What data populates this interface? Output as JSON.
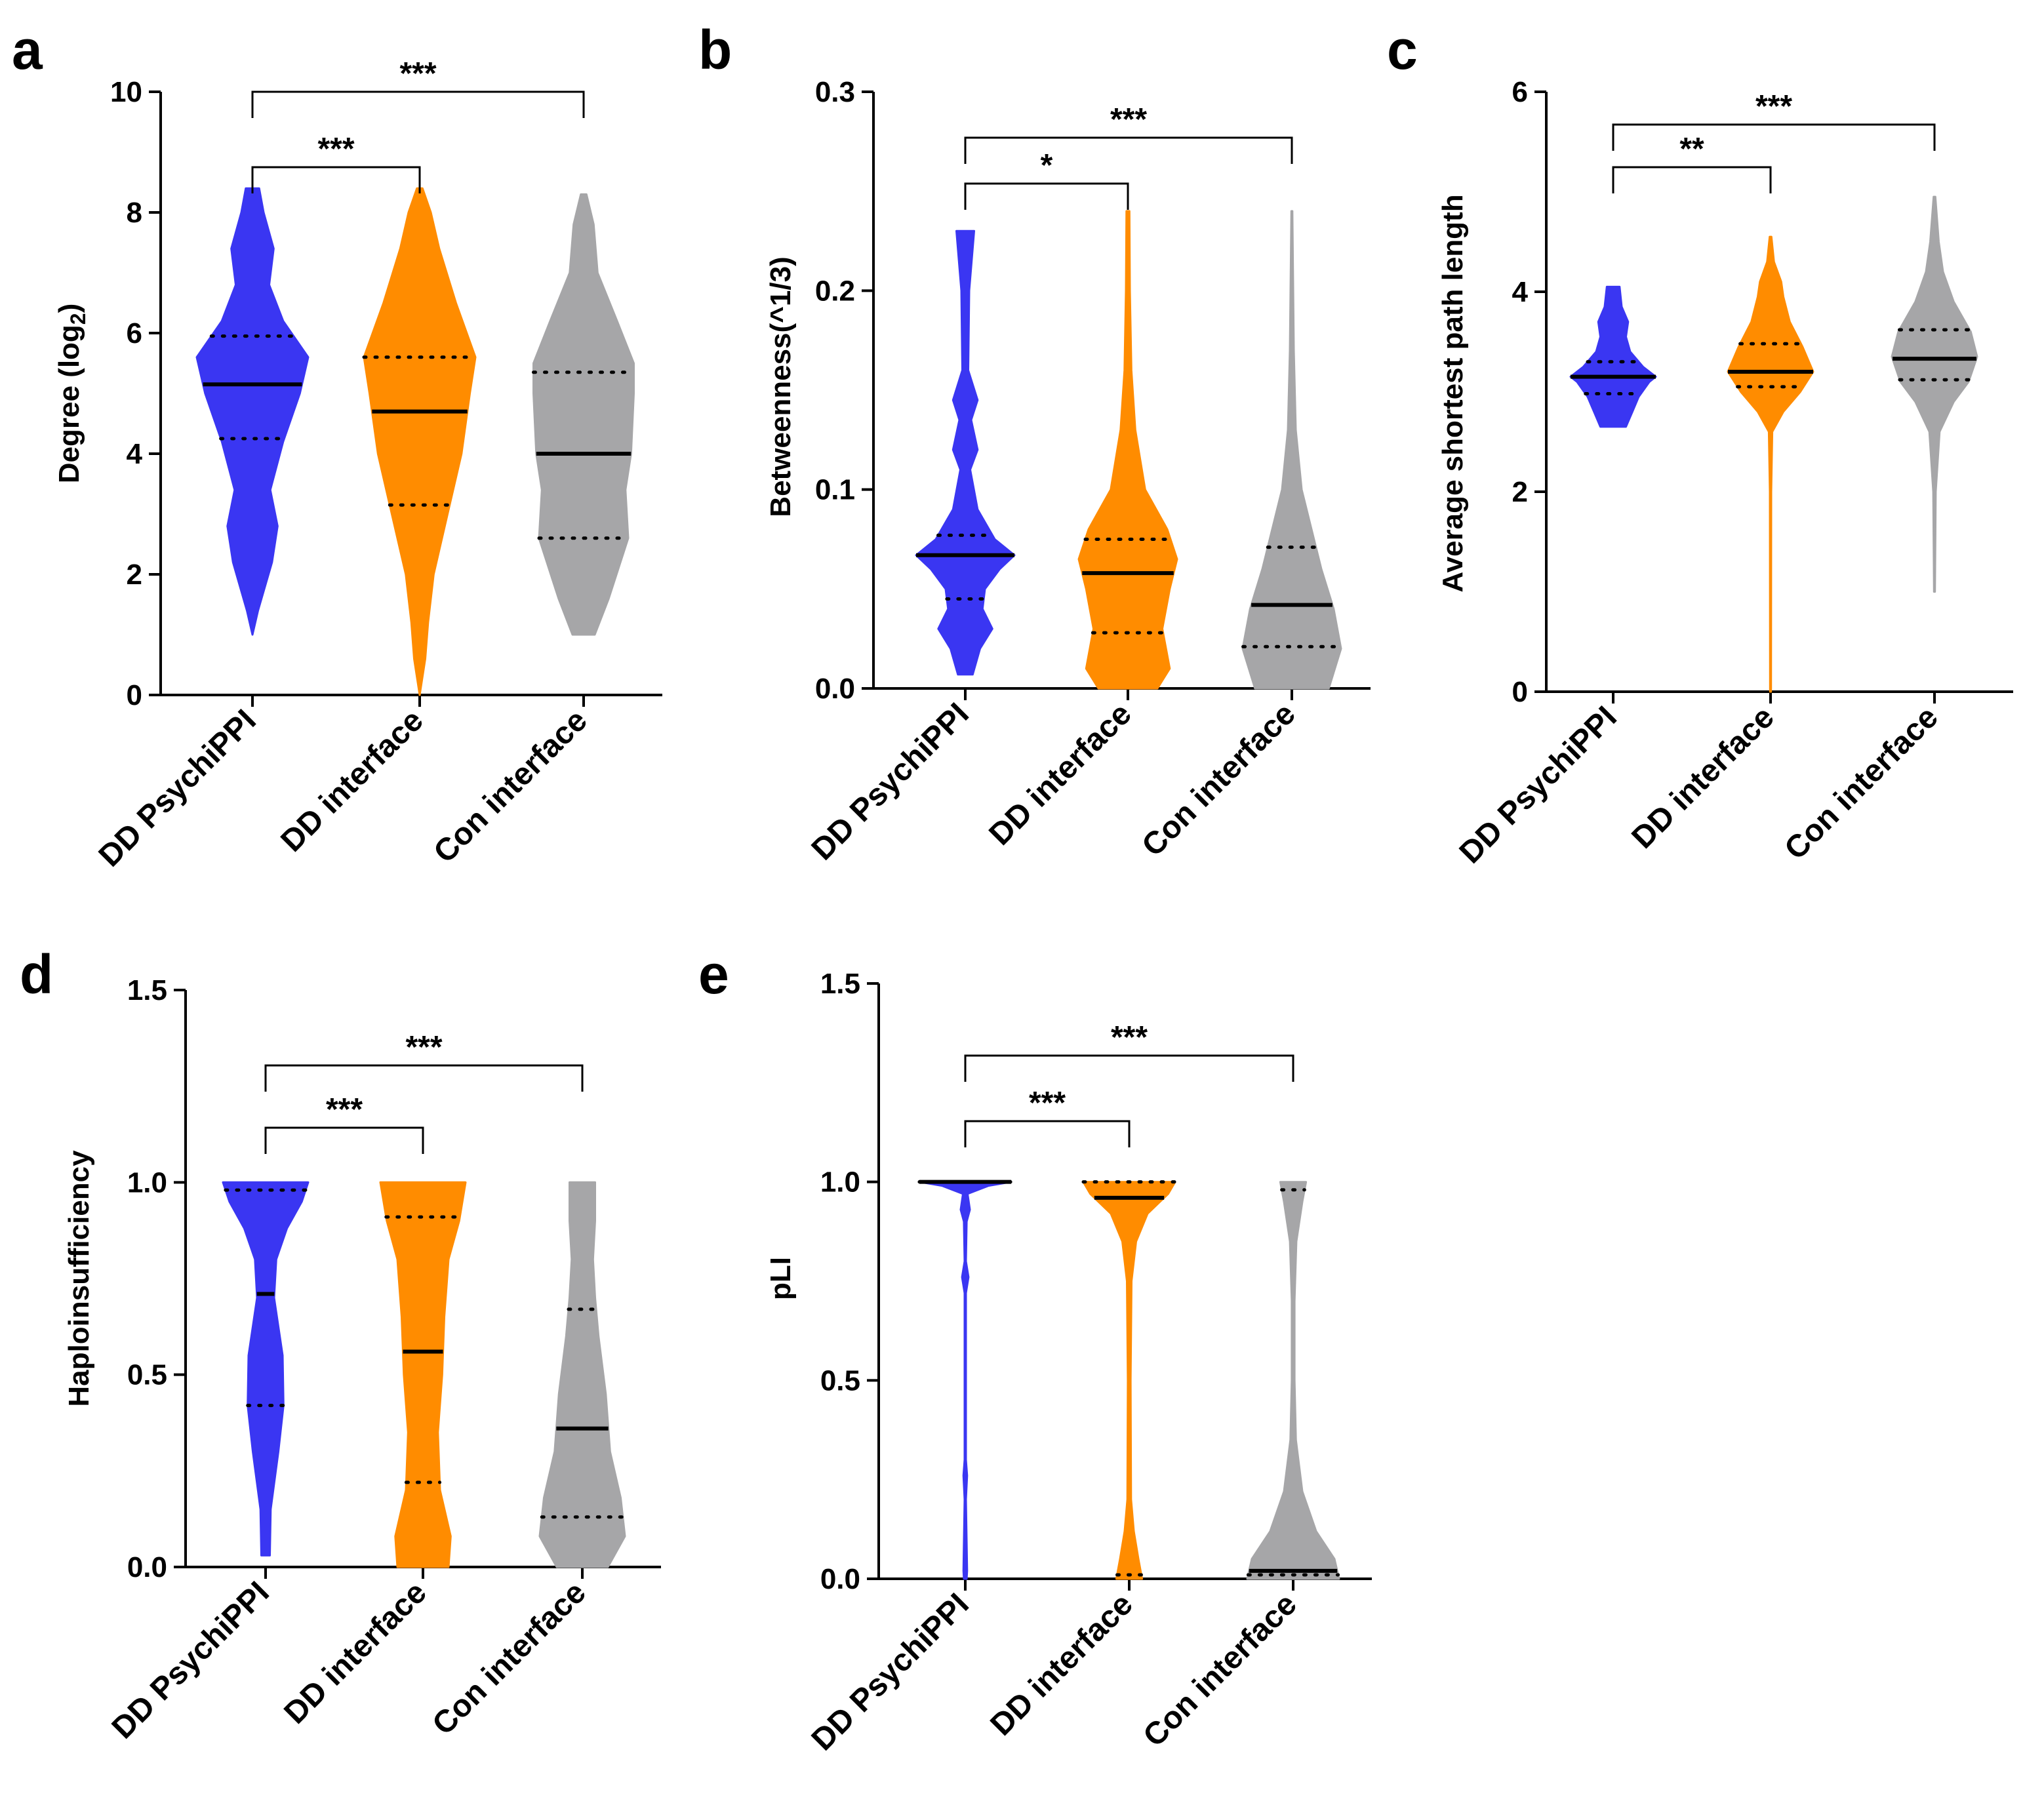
{
  "figure": {
    "colors": {
      "DD PsychiPPI": "#3a36f2",
      "DD interface": "#ff8c00",
      "Con interface": "#a6a6a8",
      "axis": "#000000"
    }
  },
  "chart_data": [
    {
      "panel": "a",
      "type": "violin",
      "ylabel": "Degree (log",
      "ylabel_sub": "2",
      "ylabel_suffix": ")",
      "ylim": [
        0,
        10
      ],
      "yticks": [
        0,
        2,
        4,
        6,
        8,
        10
      ],
      "categories": [
        "DD PsychiPPI",
        "DD interface",
        "Con interface"
      ],
      "series": [
        {
          "name": "DD PsychiPPI",
          "min": 1.0,
          "max": 8.4,
          "median": 5.15,
          "q1": 4.25,
          "q3": 5.95,
          "profile": [
            [
              1.0,
              0.0
            ],
            [
              1.4,
              0.1
            ],
            [
              2.2,
              0.35
            ],
            [
              2.8,
              0.45
            ],
            [
              3.4,
              0.32
            ],
            [
              4.2,
              0.55
            ],
            [
              5.0,
              0.85
            ],
            [
              5.6,
              1.0
            ],
            [
              6.2,
              0.55
            ],
            [
              6.8,
              0.3
            ],
            [
              7.4,
              0.38
            ],
            [
              8.0,
              0.2
            ],
            [
              8.4,
              0.12
            ]
          ]
        },
        {
          "name": "DD interface",
          "min": 0.0,
          "max": 8.4,
          "median": 4.7,
          "q1": 3.15,
          "q3": 5.6,
          "profile": [
            [
              0.0,
              0.0
            ],
            [
              0.6,
              0.1
            ],
            [
              1.2,
              0.15
            ],
            [
              2.0,
              0.25
            ],
            [
              3.0,
              0.5
            ],
            [
              4.0,
              0.75
            ],
            [
              5.0,
              0.9
            ],
            [
              5.6,
              1.0
            ],
            [
              6.5,
              0.65
            ],
            [
              7.4,
              0.35
            ],
            [
              8.0,
              0.2
            ],
            [
              8.4,
              0.05
            ]
          ]
        },
        {
          "name": "Con interface",
          "min": 1.0,
          "max": 8.3,
          "median": 4.0,
          "q1": 2.6,
          "q3": 5.35,
          "profile": [
            [
              1.0,
              0.2
            ],
            [
              1.6,
              0.45
            ],
            [
              2.6,
              0.8
            ],
            [
              3.4,
              0.75
            ],
            [
              4.0,
              0.85
            ],
            [
              5.0,
              0.9
            ],
            [
              5.5,
              0.9
            ],
            [
              6.2,
              0.6
            ],
            [
              7.0,
              0.25
            ],
            [
              7.8,
              0.18
            ],
            [
              8.3,
              0.05
            ]
          ]
        }
      ],
      "comparisons": [
        {
          "from": "DD PsychiPPI",
          "to": "DD interface",
          "label": "***"
        },
        {
          "from": "DD PsychiPPI",
          "to": "Con interface",
          "label": "***"
        }
      ]
    },
    {
      "panel": "b",
      "type": "violin",
      "ylabel": "Betweenness(^1/3)",
      "ylabel_sub": "",
      "ylabel_suffix": "",
      "ylim": [
        0,
        0.3
      ],
      "yticks": [
        0.0,
        0.1,
        0.2,
        0.3
      ],
      "yticklabels": [
        "0.0",
        "0.1",
        "0.2",
        "0.3"
      ],
      "categories": [
        "DD PsychiPPI",
        "DD interface",
        "Con interface"
      ],
      "series": [
        {
          "name": "DD PsychiPPI",
          "min": 0.007,
          "max": 0.23,
          "median": 0.067,
          "q1": 0.045,
          "q3": 0.077,
          "profile": [
            [
              0.007,
              0.15
            ],
            [
              0.02,
              0.3
            ],
            [
              0.03,
              0.55
            ],
            [
              0.04,
              0.35
            ],
            [
              0.05,
              0.4
            ],
            [
              0.06,
              0.7
            ],
            [
              0.067,
              1.0
            ],
            [
              0.075,
              0.6
            ],
            [
              0.09,
              0.25
            ],
            [
              0.11,
              0.1
            ],
            [
              0.12,
              0.25
            ],
            [
              0.135,
              0.12
            ],
            [
              0.145,
              0.25
            ],
            [
              0.16,
              0.06
            ],
            [
              0.2,
              0.08
            ],
            [
              0.23,
              0.18
            ]
          ]
        },
        {
          "name": "DD interface",
          "min": 0.0,
          "max": 0.24,
          "median": 0.058,
          "q1": 0.028,
          "q3": 0.075,
          "profile": [
            [
              0.0,
              0.6
            ],
            [
              0.01,
              0.85
            ],
            [
              0.03,
              0.7
            ],
            [
              0.05,
              0.85
            ],
            [
              0.065,
              1.0
            ],
            [
              0.08,
              0.8
            ],
            [
              0.1,
              0.35
            ],
            [
              0.13,
              0.15
            ],
            [
              0.16,
              0.07
            ],
            [
              0.2,
              0.04
            ],
            [
              0.24,
              0.03
            ]
          ]
        },
        {
          "name": "Con interface",
          "min": 0.0,
          "max": 0.24,
          "median": 0.042,
          "q1": 0.021,
          "q3": 0.071,
          "profile": [
            [
              0.0,
              0.75
            ],
            [
              0.02,
              1.0
            ],
            [
              0.04,
              0.85
            ],
            [
              0.06,
              0.6
            ],
            [
              0.08,
              0.4
            ],
            [
              0.1,
              0.2
            ],
            [
              0.13,
              0.08
            ],
            [
              0.17,
              0.04
            ],
            [
              0.24,
              0.01
            ]
          ]
        }
      ],
      "comparisons": [
        {
          "from": "DD PsychiPPI",
          "to": "DD interface",
          "label": "*"
        },
        {
          "from": "DD PsychiPPI",
          "to": "Con interface",
          "label": "***"
        }
      ]
    },
    {
      "panel": "c",
      "type": "violin",
      "ylabel": "Average shortest path length",
      "ylabel_sub": "",
      "ylabel_suffix": "",
      "ylim": [
        0,
        6
      ],
      "yticks": [
        0,
        2,
        4,
        6
      ],
      "categories": [
        "DD PsychiPPI",
        "DD interface",
        "Con interface"
      ],
      "series": [
        {
          "name": "DD PsychiPPI",
          "min": 2.65,
          "max": 4.05,
          "median": 3.15,
          "q1": 2.98,
          "q3": 3.3,
          "profile": [
            [
              2.65,
              0.3
            ],
            [
              2.8,
              0.45
            ],
            [
              2.95,
              0.6
            ],
            [
              3.1,
              0.85
            ],
            [
              3.15,
              1.0
            ],
            [
              3.25,
              0.7
            ],
            [
              3.4,
              0.4
            ],
            [
              3.55,
              0.3
            ],
            [
              3.7,
              0.35
            ],
            [
              3.85,
              0.2
            ],
            [
              4.05,
              0.15
            ]
          ]
        },
        {
          "name": "DD interface",
          "min": 0.0,
          "max": 4.55,
          "median": 3.2,
          "q1": 3.05,
          "q3": 3.48,
          "profile": [
            [
              0.0,
              0.01
            ],
            [
              2.0,
              0.015
            ],
            [
              2.6,
              0.04
            ],
            [
              2.8,
              0.3
            ],
            [
              3.0,
              0.7
            ],
            [
              3.2,
              1.0
            ],
            [
              3.45,
              0.75
            ],
            [
              3.7,
              0.45
            ],
            [
              3.95,
              0.3
            ],
            [
              4.1,
              0.25
            ],
            [
              4.3,
              0.08
            ],
            [
              4.55,
              0.02
            ]
          ]
        },
        {
          "name": "Con interface",
          "min": 1.0,
          "max": 4.95,
          "median": 3.33,
          "q1": 3.12,
          "q3": 3.62,
          "profile": [
            [
              1.0,
              0.01
            ],
            [
              2.0,
              0.03
            ],
            [
              2.6,
              0.12
            ],
            [
              2.9,
              0.45
            ],
            [
              3.1,
              0.8
            ],
            [
              3.35,
              1.0
            ],
            [
              3.6,
              0.85
            ],
            [
              3.9,
              0.45
            ],
            [
              4.2,
              0.2
            ],
            [
              4.5,
              0.1
            ],
            [
              4.95,
              0.02
            ]
          ]
        }
      ],
      "comparisons": [
        {
          "from": "DD PsychiPPI",
          "to": "DD interface",
          "label": "**"
        },
        {
          "from": "DD PsychiPPI",
          "to": "Con interface",
          "label": "***"
        }
      ]
    },
    {
      "panel": "d",
      "type": "violin",
      "ylabel": "Haploinsufficiency",
      "ylabel_sub": "",
      "ylabel_suffix": "",
      "ylim": [
        0,
        1.5
      ],
      "yticks": [
        0.0,
        0.5,
        1.0,
        1.5
      ],
      "yticklabels": [
        "0.0",
        "0.5",
        "1.0",
        "1.5"
      ],
      "categories": [
        "DD PsychiPPI",
        "DD interface",
        "Con interface"
      ],
      "series": [
        {
          "name": "DD PsychiPPI",
          "min": 0.03,
          "max": 1.0,
          "median": 0.71,
          "q1": 0.42,
          "q3": 0.98,
          "profile": [
            [
              0.03,
              0.1
            ],
            [
              0.15,
              0.12
            ],
            [
              0.3,
              0.3
            ],
            [
              0.42,
              0.42
            ],
            [
              0.55,
              0.4
            ],
            [
              0.7,
              0.2
            ],
            [
              0.8,
              0.25
            ],
            [
              0.88,
              0.5
            ],
            [
              0.95,
              0.85
            ],
            [
              1.0,
              1.0
            ]
          ]
        },
        {
          "name": "DD interface",
          "min": 0.0,
          "max": 1.0,
          "median": 0.56,
          "q1": 0.22,
          "q3": 0.91,
          "profile": [
            [
              0.0,
              0.6
            ],
            [
              0.08,
              0.65
            ],
            [
              0.2,
              0.4
            ],
            [
              0.35,
              0.35
            ],
            [
              0.5,
              0.45
            ],
            [
              0.65,
              0.5
            ],
            [
              0.8,
              0.6
            ],
            [
              0.9,
              0.85
            ],
            [
              1.0,
              1.0
            ]
          ]
        },
        {
          "name": "Con interface",
          "min": 0.0,
          "max": 1.0,
          "median": 0.36,
          "q1": 0.13,
          "q3": 0.67,
          "profile": [
            [
              0.0,
              0.6
            ],
            [
              0.08,
              1.0
            ],
            [
              0.18,
              0.9
            ],
            [
              0.3,
              0.65
            ],
            [
              0.45,
              0.55
            ],
            [
              0.6,
              0.38
            ],
            [
              0.7,
              0.3
            ],
            [
              0.8,
              0.25
            ],
            [
              0.9,
              0.3
            ],
            [
              1.0,
              0.3
            ]
          ]
        }
      ],
      "comparisons": [
        {
          "from": "DD PsychiPPI",
          "to": "DD interface",
          "label": "***"
        },
        {
          "from": "DD PsychiPPI",
          "to": "Con interface",
          "label": "***"
        }
      ]
    },
    {
      "panel": "e",
      "type": "violin",
      "ylabel": "pLI",
      "ylabel_sub": "",
      "ylabel_suffix": "",
      "ylim": [
        0,
        1.5
      ],
      "yticks": [
        0.0,
        0.5,
        1.0,
        1.5
      ],
      "yticklabels": [
        "0.0",
        "0.5",
        "1.0",
        "1.5"
      ],
      "categories": [
        "DD PsychiPPI",
        "DD interface",
        "Con interface"
      ],
      "series": [
        {
          "name": "DD PsychiPPI",
          "min": 0.0,
          "max": 1.0,
          "median": 1.0,
          "q1": 1.0,
          "q3": 1.0,
          "profile": [
            [
              0.0,
              0.03
            ],
            [
              0.02,
              0.04
            ],
            [
              0.2,
              0.015
            ],
            [
              0.26,
              0.04
            ],
            [
              0.3,
              0.015
            ],
            [
              0.72,
              0.015
            ],
            [
              0.76,
              0.07
            ],
            [
              0.8,
              0.015
            ],
            [
              0.9,
              0.03
            ],
            [
              0.93,
              0.1
            ],
            [
              0.97,
              0.05
            ],
            [
              0.99,
              0.5
            ],
            [
              1.0,
              1.0
            ]
          ]
        },
        {
          "name": "DD interface",
          "min": 0.0,
          "max": 1.0,
          "median": 0.96,
          "q1": 0.01,
          "q3": 1.0,
          "profile": [
            [
              0.0,
              0.28
            ],
            [
              0.05,
              0.2
            ],
            [
              0.12,
              0.1
            ],
            [
              0.2,
              0.04
            ],
            [
              0.5,
              0.03
            ],
            [
              0.75,
              0.05
            ],
            [
              0.85,
              0.15
            ],
            [
              0.92,
              0.4
            ],
            [
              0.97,
              0.85
            ],
            [
              1.0,
              1.0
            ]
          ]
        },
        {
          "name": "Con interface",
          "min": 0.0,
          "max": 1.0,
          "median": 0.02,
          "q1": 0.01,
          "q3": 0.98,
          "profile": [
            [
              0.0,
              1.0
            ],
            [
              0.05,
              0.9
            ],
            [
              0.12,
              0.5
            ],
            [
              0.22,
              0.2
            ],
            [
              0.35,
              0.06
            ],
            [
              0.5,
              0.03
            ],
            [
              0.7,
              0.03
            ],
            [
              0.85,
              0.07
            ],
            [
              0.95,
              0.2
            ],
            [
              1.0,
              0.28
            ]
          ]
        }
      ],
      "comparisons": [
        {
          "from": "DD PsychiPPI",
          "to": "DD interface",
          "label": "***"
        },
        {
          "from": "DD PsychiPPI",
          "to": "Con interface",
          "label": "***"
        }
      ]
    }
  ]
}
